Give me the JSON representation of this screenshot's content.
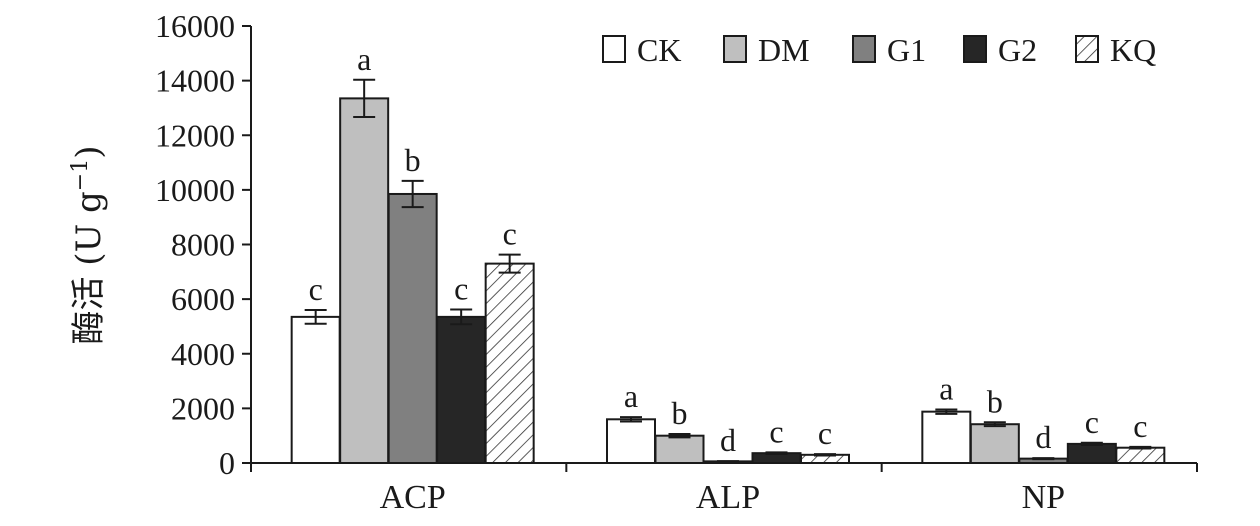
{
  "chart_data": {
    "type": "bar",
    "title": "",
    "xlabel": "",
    "ylabel": "酶活 (U g",
    "ylabel_sup": "−1",
    "ylabel_close": ")",
    "ylim": [
      0,
      16000
    ],
    "yticks": [
      0,
      2000,
      4000,
      6000,
      8000,
      10000,
      12000,
      14000,
      16000
    ],
    "ytick_labels": [
      "0",
      "2000",
      "4000",
      "6000",
      "8000",
      "10000",
      "12000",
      "14000",
      "16000"
    ],
    "categories": [
      "ACP",
      "ALP",
      "NP"
    ],
    "legend_position": "top-right",
    "series": [
      {
        "name": "CK",
        "values": [
          5350,
          1600,
          1880
        ],
        "errors": [
          250,
          80,
          80
        ],
        "labels": [
          "c",
          "a",
          "a"
        ],
        "fill": "#ffffff",
        "pattern": "none"
      },
      {
        "name": "DM",
        "values": [
          13350,
          1000,
          1420
        ],
        "errors": [
          680,
          60,
          70
        ],
        "labels": [
          "a",
          "b",
          "b"
        ],
        "fill": "#bfbfbf",
        "pattern": "none"
      },
      {
        "name": "G1",
        "values": [
          9850,
          60,
          160
        ],
        "errors": [
          480,
          10,
          20
        ],
        "labels": [
          "b",
          "d",
          "d"
        ],
        "fill": "#808080",
        "pattern": "none"
      },
      {
        "name": "G2",
        "values": [
          5350,
          360,
          700
        ],
        "errors": [
          270,
          30,
          40
        ],
        "labels": [
          "c",
          "c",
          "c"
        ],
        "fill": "#262626",
        "pattern": "none"
      },
      {
        "name": "KQ",
        "values": [
          7300,
          300,
          560
        ],
        "errors": [
          330,
          25,
          30
        ],
        "labels": [
          "c",
          "c",
          "c"
        ],
        "fill": "#ffffff",
        "pattern": "diagonal"
      }
    ]
  }
}
